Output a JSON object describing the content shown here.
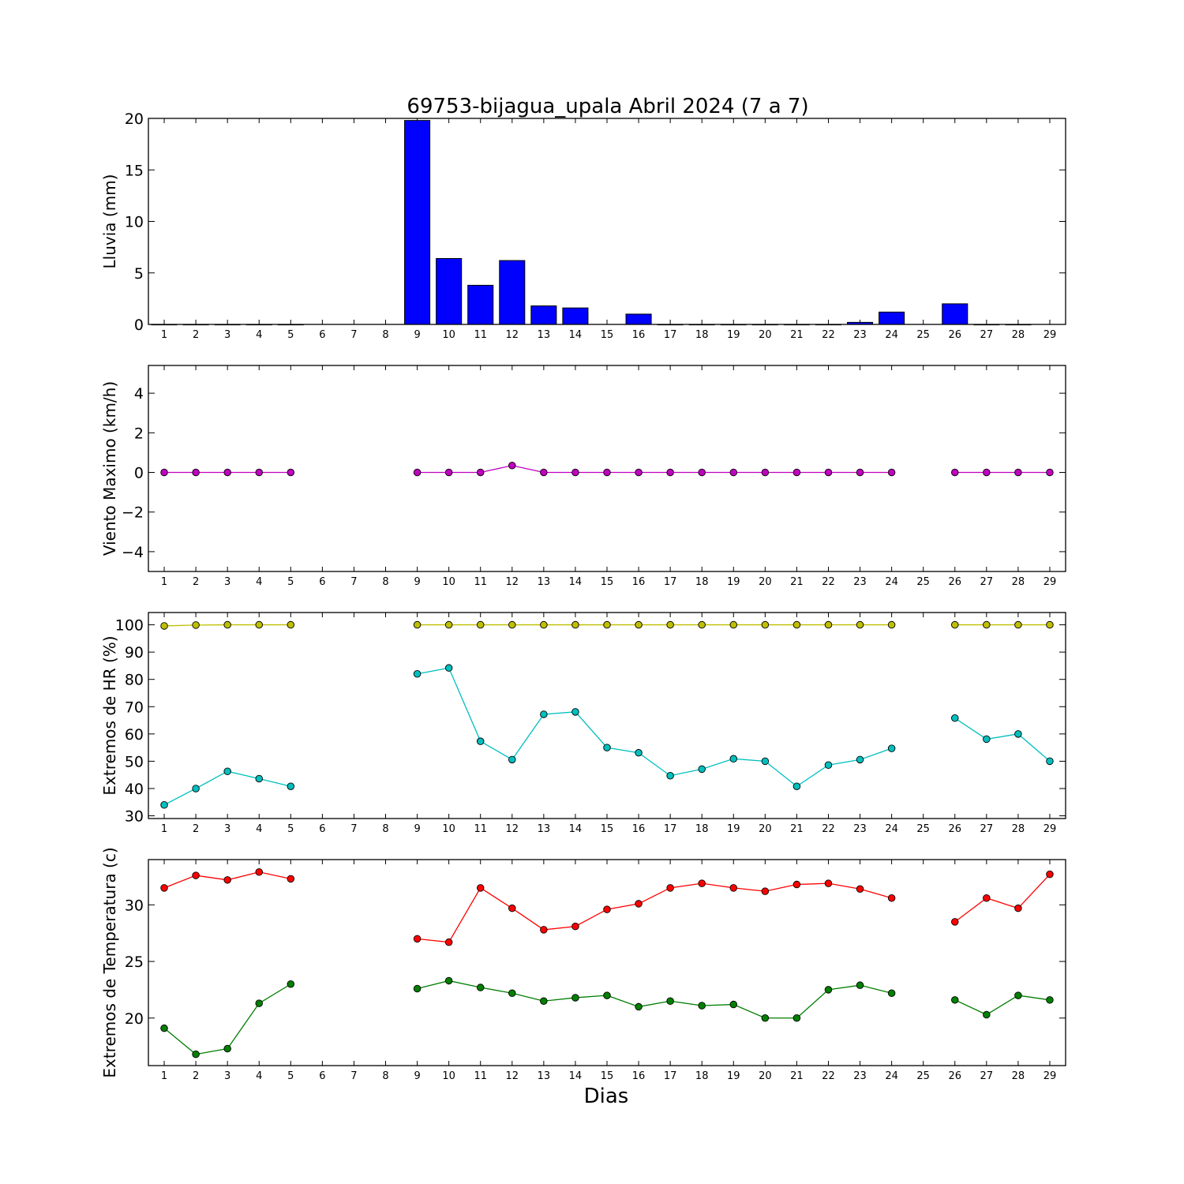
{
  "figure": {
    "title": "69753-bijagua_upala Abril 2024  (7 a 7)",
    "xlabel": "Dias"
  },
  "chart_data": [
    {
      "type": "bar",
      "ylabel": "Lluvia (mm)",
      "ylim": [
        0,
        20
      ],
      "yticks": [
        0,
        5,
        10,
        15,
        20
      ],
      "xlim": [
        0.5,
        29.5
      ],
      "categories": [
        1,
        2,
        3,
        4,
        5,
        6,
        7,
        8,
        9,
        10,
        11,
        12,
        13,
        14,
        15,
        16,
        17,
        18,
        19,
        20,
        21,
        22,
        23,
        24,
        25,
        26,
        27,
        28,
        29
      ],
      "values": [
        0,
        0,
        0,
        0,
        0,
        null,
        null,
        null,
        19.8,
        6.4,
        3.8,
        6.2,
        1.8,
        1.6,
        null,
        1.0,
        0,
        0,
        0,
        0,
        0,
        0,
        0.2,
        1.2,
        null,
        2.0,
        0,
        0,
        null
      ],
      "color": "#0000ff"
    },
    {
      "type": "line",
      "ylabel": "Viento Maximo (km/h)",
      "ylim": [
        -5,
        5.4
      ],
      "yticks": [
        -4,
        -2,
        0,
        2,
        4
      ],
      "xlim": [
        0.5,
        29.5
      ],
      "x": [
        1,
        2,
        3,
        4,
        5,
        6,
        7,
        8,
        9,
        10,
        11,
        12,
        13,
        14,
        15,
        16,
        17,
        18,
        19,
        20,
        21,
        22,
        23,
        24,
        25,
        26,
        27,
        28,
        29
      ],
      "series": [
        {
          "values": [
            0,
            0,
            0,
            0,
            0,
            null,
            null,
            null,
            0,
            0,
            0,
            0.35,
            0,
            0,
            0,
            0,
            0,
            0,
            0,
            0,
            0,
            0,
            0,
            0,
            null,
            0,
            0,
            0,
            0
          ],
          "color": "#bf00bf"
        }
      ]
    },
    {
      "type": "line",
      "ylabel": "Extremos de HR (%)",
      "ylim": [
        29,
        104.5
      ],
      "yticks": [
        30,
        40,
        50,
        60,
        70,
        80,
        90,
        100
      ],
      "xlim": [
        0.5,
        29.5
      ],
      "x": [
        1,
        2,
        3,
        4,
        5,
        6,
        7,
        8,
        9,
        10,
        11,
        12,
        13,
        14,
        15,
        16,
        17,
        18,
        19,
        20,
        21,
        22,
        23,
        24,
        25,
        26,
        27,
        28,
        29
      ],
      "series": [
        {
          "values": [
            99.6,
            99.9,
            100,
            100,
            100,
            null,
            null,
            null,
            100,
            100,
            100,
            100,
            100,
            100,
            100,
            100,
            100,
            100,
            100,
            100,
            100,
            100,
            100,
            100,
            null,
            100,
            100,
            100,
            100
          ],
          "color": "#bfbf00"
        },
        {
          "values": [
            34,
            40,
            46.3,
            43.6,
            40.8,
            null,
            null,
            null,
            82,
            84.2,
            57.3,
            50.6,
            67.2,
            68.1,
            55,
            53.1,
            44.7,
            47.1,
            50.9,
            50,
            40.8,
            48.6,
            50.6,
            54.7,
            null,
            65.8,
            58.1,
            60,
            50
          ],
          "color": "#00bfbf"
        }
      ]
    },
    {
      "type": "line",
      "ylabel": "Extremos de Temperatura (c)",
      "ylim": [
        15.8,
        34
      ],
      "yticks": [
        20,
        25,
        30
      ],
      "xlim": [
        0.5,
        29.5
      ],
      "x": [
        1,
        2,
        3,
        4,
        5,
        6,
        7,
        8,
        9,
        10,
        11,
        12,
        13,
        14,
        15,
        16,
        17,
        18,
        19,
        20,
        21,
        22,
        23,
        24,
        25,
        26,
        27,
        28,
        29
      ],
      "series": [
        {
          "values": [
            31.5,
            32.6,
            32.2,
            32.9,
            32.3,
            null,
            null,
            null,
            27.0,
            26.7,
            31.5,
            29.7,
            27.8,
            28.1,
            29.6,
            30.1,
            31.5,
            31.9,
            31.5,
            31.2,
            31.8,
            31.9,
            31.4,
            30.6,
            null,
            28.5,
            30.6,
            29.7,
            32.7
          ],
          "color": "#ff0000"
        },
        {
          "values": [
            19.1,
            16.8,
            17.3,
            21.3,
            23.0,
            null,
            null,
            null,
            22.6,
            23.3,
            22.7,
            22.2,
            21.5,
            21.8,
            22.0,
            21.0,
            21.5,
            21.1,
            21.2,
            20.0,
            20.0,
            22.5,
            22.9,
            22.2,
            null,
            21.6,
            20.3,
            22.0,
            21.6
          ],
          "color": "#007f00"
        }
      ]
    }
  ]
}
